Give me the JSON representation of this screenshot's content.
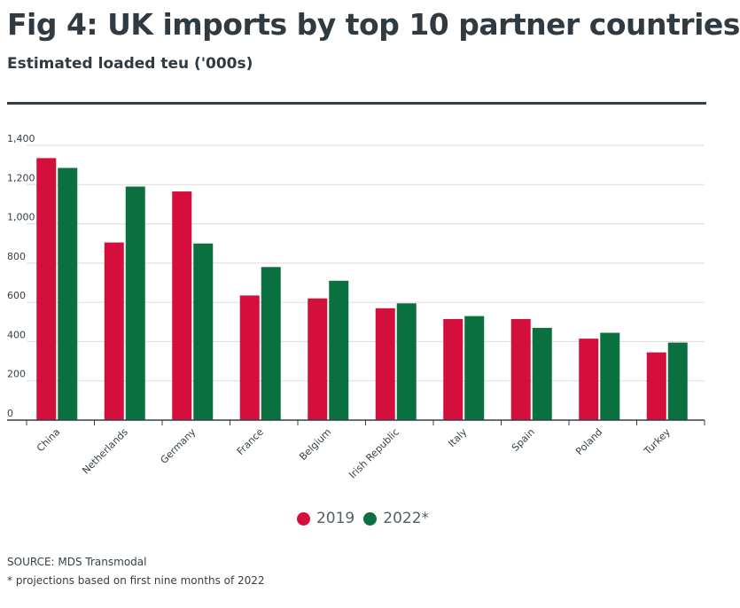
{
  "header": {
    "title": "Fig 4: UK imports by top 10 partner countries",
    "subtitle": "Estimated loaded teu ('000s)"
  },
  "footer": {
    "source": "SOURCE: MDS Transmodal",
    "note": "* projections based on first nine months of 2022"
  },
  "colors": {
    "series_2019": "#d50f3c",
    "series_2022": "#0b7040",
    "grid": "#dcdcdc",
    "axis": "#333f48"
  },
  "chart_data": {
    "type": "bar",
    "title": "Fig 4: UK imports by top 10 partner countries",
    "ylabel": "Estimated loaded teu ('000s)",
    "xlabel": "",
    "categories": [
      "China",
      "Netherlands",
      "Germany",
      "France",
      "Belgium",
      "Irish Republic",
      "Italy",
      "Spain",
      "Poland",
      "Turkey"
    ],
    "series": [
      {
        "name": "2019",
        "color": "#d50f3c",
        "values": [
          1335,
          905,
          1165,
          635,
          620,
          570,
          515,
          515,
          415,
          345
        ]
      },
      {
        "name": "2022*",
        "color": "#0b7040",
        "values": [
          1285,
          1190,
          900,
          780,
          710,
          595,
          530,
          470,
          445,
          395
        ]
      }
    ],
    "ylim": [
      0,
      1400
    ],
    "yticks": [
      0,
      200,
      400,
      600,
      800,
      1000,
      1200,
      1400
    ],
    "ytick_labels": [
      "0",
      "200",
      "400",
      "600",
      "800",
      "1,000",
      "1,200",
      "1,400"
    ],
    "grid": true,
    "legend": "bottom-center"
  }
}
